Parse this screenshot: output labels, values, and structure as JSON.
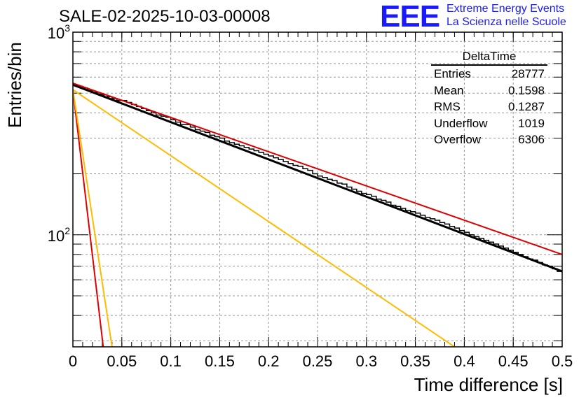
{
  "header": {
    "title": "SALE-02-2025-10-03-00008",
    "logo_text": "EEE",
    "logo_line1": "Extreme Energy Events",
    "logo_line2": "La Scienza nelle Scuole"
  },
  "stats": {
    "name": "DeltaTime",
    "rows": [
      {
        "label": "Entries",
        "value": "28777"
      },
      {
        "label": "Mean",
        "value": "0.1598"
      },
      {
        "label": "RMS",
        "value": "0.1287"
      },
      {
        "label": "Underflow",
        "value": "1019"
      },
      {
        "label": "Overflow",
        "value": "6306"
      }
    ]
  },
  "colors": {
    "histogram": "#000000",
    "fit": "#000000",
    "red": "#dd0000",
    "orange": "#ffbb00",
    "grid": "#999999"
  },
  "chart_data": {
    "type": "line",
    "title": "SALE-02-2025-10-03-00008",
    "xlabel": "Time difference [s]",
    "ylabel": "Entries/bin",
    "xlim": [
      0,
      0.5
    ],
    "ylim": [
      28,
      1000
    ],
    "yscale": "log",
    "grid": true,
    "x_ticks": [
      "0",
      "0.05",
      "0.1",
      "0.15",
      "0.2",
      "0.25",
      "0.3",
      "0.35",
      "0.4",
      "0.45",
      "0.5"
    ],
    "y_ticks": [
      {
        "label": "10",
        "exp": "2",
        "value": 100
      },
      {
        "label": "10",
        "exp": "3",
        "value": 1000
      }
    ],
    "histogram": {
      "name": "DeltaTime",
      "bin_width": 0.005,
      "values": [
        550,
        540,
        530,
        515,
        505,
        495,
        490,
        480,
        470,
        460,
        460,
        450,
        440,
        430,
        420,
        410,
        400,
        390,
        385,
        380,
        370,
        360,
        350,
        350,
        340,
        330,
        325,
        320,
        310,
        305,
        300,
        290,
        285,
        280,
        275,
        270,
        265,
        260,
        255,
        250,
        245,
        240,
        235,
        230,
        225,
        220,
        218,
        212,
        208,
        200,
        195,
        192,
        188,
        185,
        180,
        178,
        172,
        168,
        164,
        160,
        158,
        155,
        150,
        148,
        145,
        140,
        138,
        135,
        132,
        130,
        128,
        125,
        122,
        120,
        118,
        115,
        113,
        110,
        108,
        105,
        103,
        100,
        98,
        96,
        94,
        92,
        90,
        88,
        86,
        84,
        82,
        80,
        78,
        76,
        75,
        73,
        71,
        70,
        68,
        66
      ]
    },
    "series": [
      {
        "name": "fit",
        "color": "#000000",
        "x": [
          0,
          0.5
        ],
        "y": [
          550,
          66
        ]
      },
      {
        "name": "upper",
        "color": "#dd0000",
        "x": [
          0,
          0.5
        ],
        "y": [
          560,
          80
        ]
      },
      {
        "name": "fast-red",
        "color": "#dd0000",
        "x": [
          0,
          0.031
        ],
        "y": [
          520,
          28
        ]
      },
      {
        "name": "fast-orange",
        "color": "#ffbb00",
        "x": [
          0,
          0.04
        ],
        "y": [
          520,
          28
        ]
      },
      {
        "name": "medium-orange",
        "color": "#ffbb00",
        "x": [
          0,
          0.39
        ],
        "y": [
          520,
          28
        ]
      }
    ]
  }
}
